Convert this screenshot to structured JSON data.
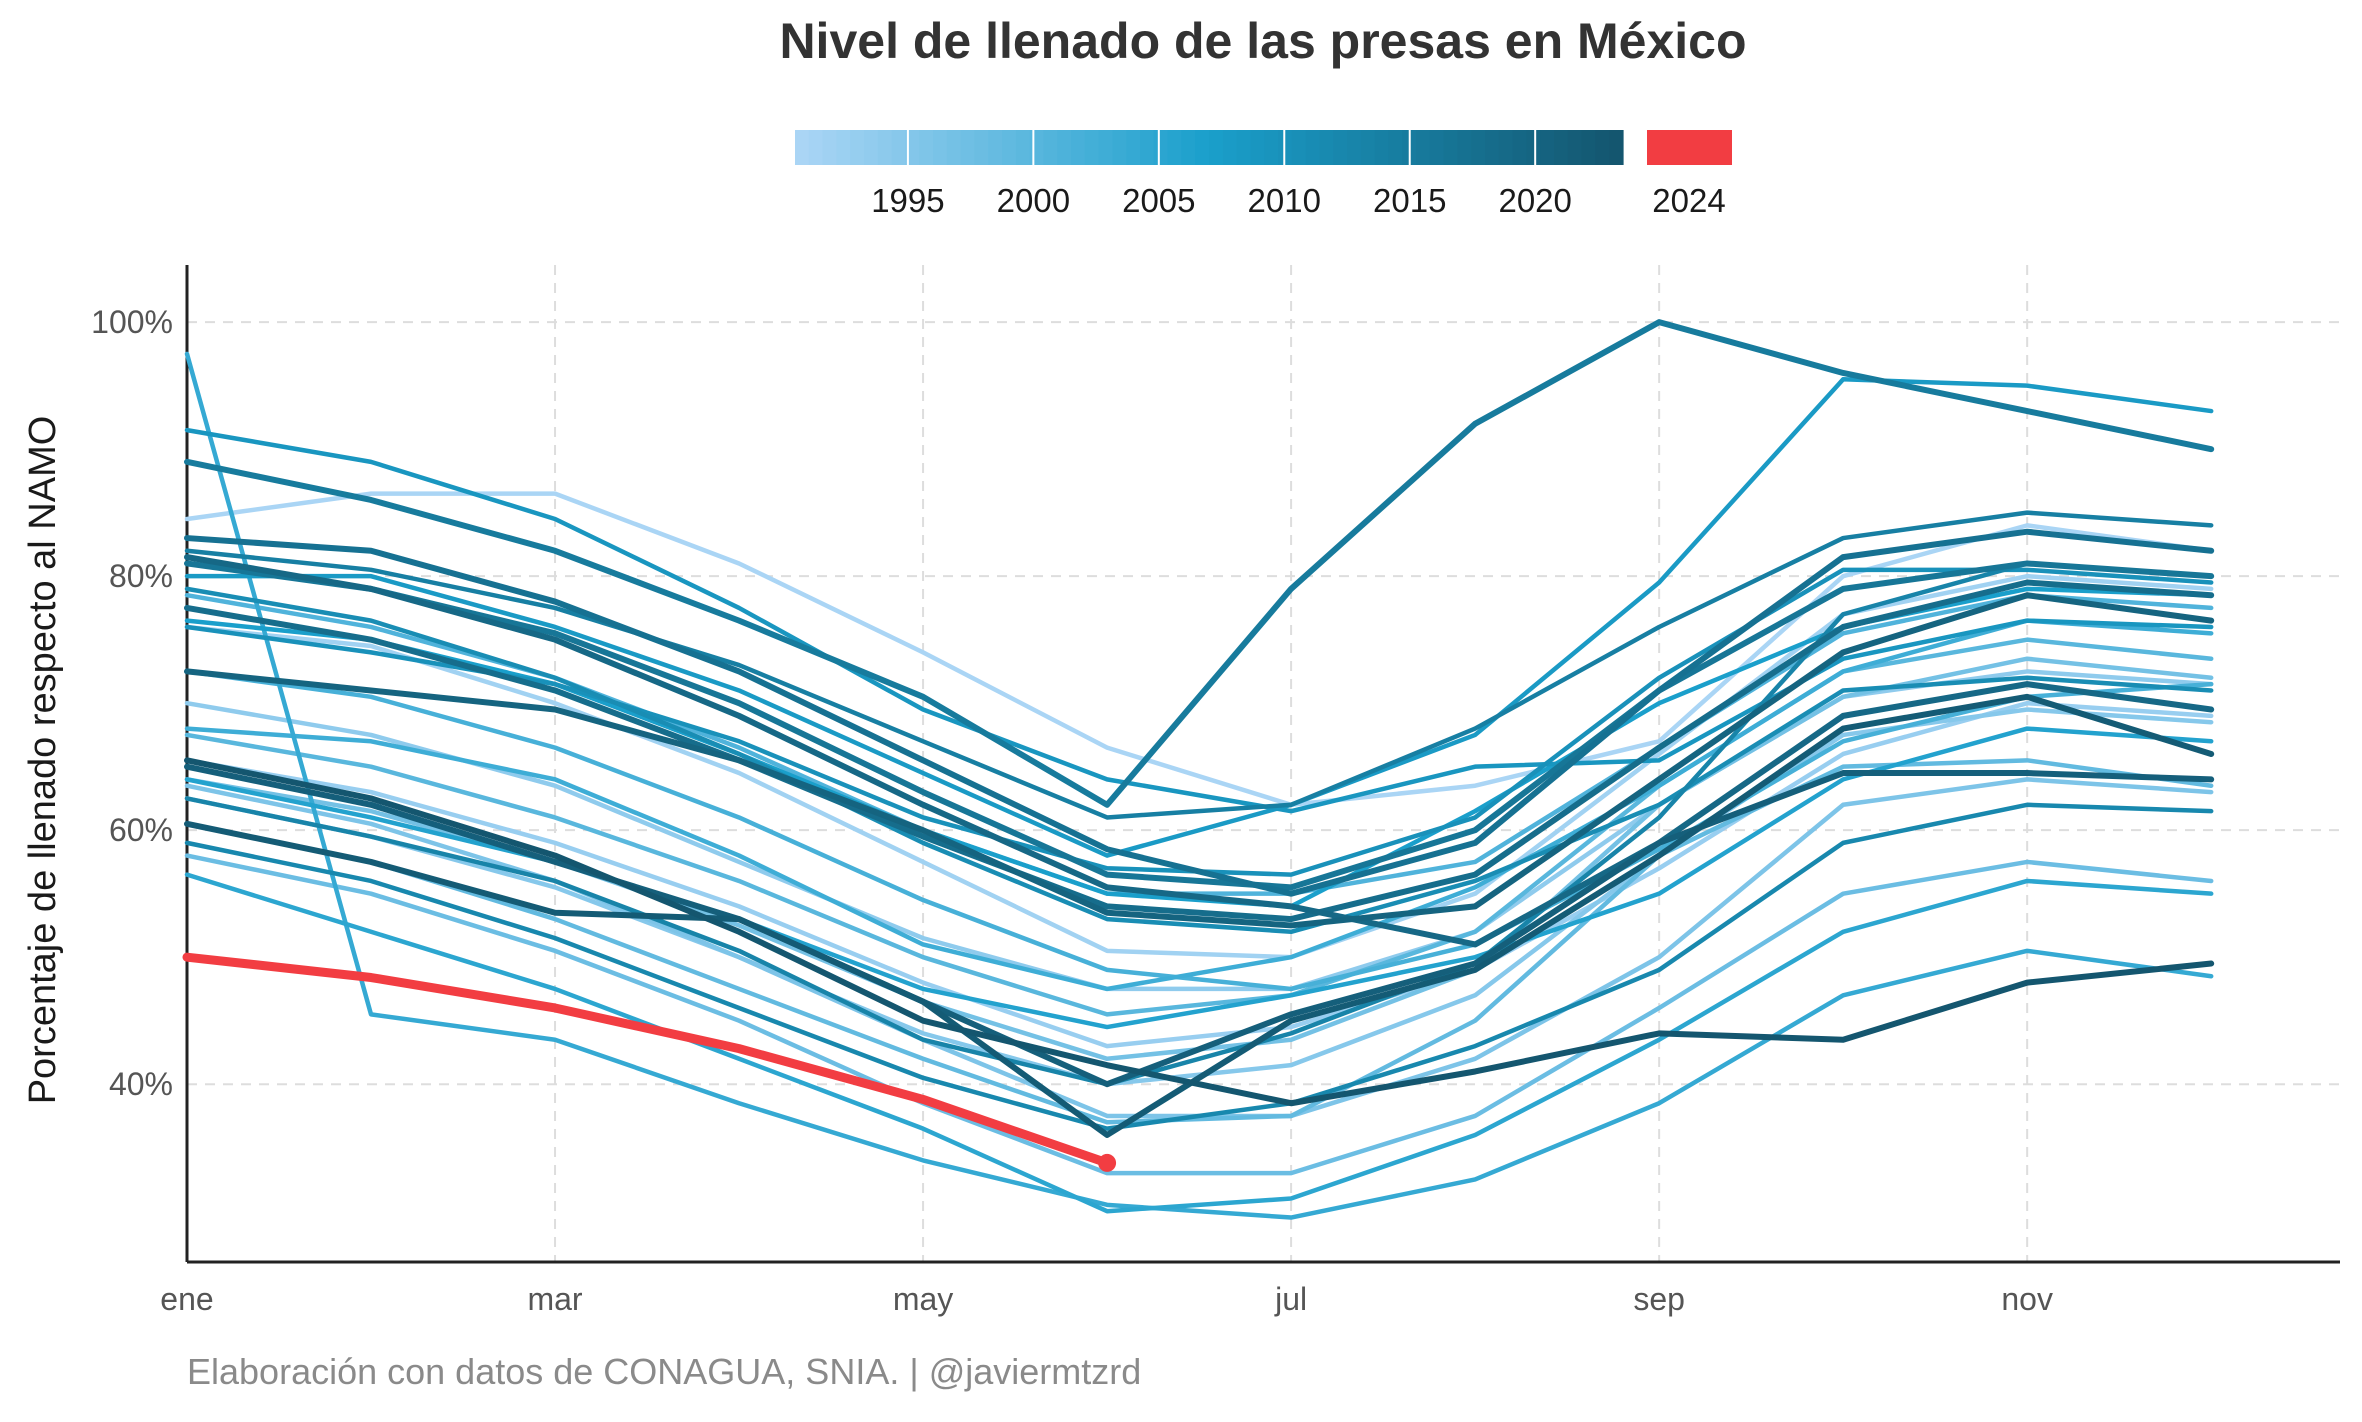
{
  "chart_data": {
    "type": "line",
    "title": "Nivel de llenado de las presas en México",
    "ylabel": "Porcentaje de llenado respecto al NAMO",
    "xlabel": "",
    "caption": "Elaboración con datos de CONAGUA, SNIA. | @javiermtzrd",
    "x_months": [
      1,
      2,
      3,
      4,
      5,
      6,
      7,
      8,
      9,
      10,
      11,
      12
    ],
    "x_ticks": [
      {
        "month": 1,
        "label": "ene"
      },
      {
        "month": 3,
        "label": "mar"
      },
      {
        "month": 5,
        "label": "may"
      },
      {
        "month": 7,
        "label": "jul"
      },
      {
        "month": 9,
        "label": "sep"
      },
      {
        "month": 11,
        "label": "nov"
      }
    ],
    "y_ticks": [
      {
        "value": 40,
        "label": "40%"
      },
      {
        "value": 60,
        "label": "60%"
      },
      {
        "value": 80,
        "label": "80%"
      },
      {
        "value": 100,
        "label": "100%"
      }
    ],
    "xlim": [
      1,
      12.7
    ],
    "ylim": [
      26,
      104.5
    ],
    "grid": true,
    "legend": {
      "placement": "top",
      "gradient_labels": [
        "1995",
        "2000",
        "2005",
        "2010",
        "2015",
        "2020"
      ],
      "highlight_label": "2024",
      "gradient_colors": [
        "#aad5f5",
        "#1a9fcb",
        "#14566f"
      ],
      "highlight_color": "#f23d42",
      "year_range": [
        1991,
        2023
      ]
    },
    "series": [
      {
        "year": 1991,
        "values": [
          84.5,
          86.5,
          86.5,
          81,
          74,
          66.5,
          62,
          63.5,
          67,
          80,
          84,
          82
        ]
      },
      {
        "year": 1992,
        "values": [
          76,
          74.5,
          70,
          64.5,
          57.5,
          50.5,
          50,
          55,
          66,
          77,
          80,
          79
        ]
      },
      {
        "year": 1993,
        "values": [
          65.5,
          63,
          59,
          54,
          48,
          43,
          44.5,
          49,
          57,
          66,
          70,
          69
        ]
      },
      {
        "year": 1994,
        "values": [
          70,
          67.5,
          63.5,
          57.5,
          51.5,
          47.5,
          47.5,
          52,
          62,
          70.5,
          72.5,
          71.5
        ]
      },
      {
        "year": 1995,
        "values": [
          62.5,
          59.5,
          55.5,
          50,
          44,
          40,
          41.5,
          47,
          58,
          67.5,
          69.5,
          68.5
        ]
      },
      {
        "year": 1996,
        "values": [
          63.5,
          60.5,
          56,
          50,
          43.5,
          37.5,
          37.5,
          42,
          50,
          62,
          64,
          63
        ]
      },
      {
        "year": 1997,
        "values": [
          64,
          61.5,
          57.5,
          52.5,
          46.5,
          42,
          43.5,
          49,
          62,
          70.5,
          73.5,
          72
        ]
      },
      {
        "year": 1998,
        "values": [
          58,
          55,
          50.5,
          45,
          38.5,
          33,
          33,
          37.5,
          46,
          55,
          57.5,
          56
        ]
      },
      {
        "year": 1999,
        "values": [
          60.5,
          57.5,
          53,
          47.5,
          42,
          37,
          37.5,
          45,
          58,
          65,
          65.5,
          63.5
        ]
      },
      {
        "year": 2000,
        "values": [
          67.5,
          65,
          61,
          56,
          50,
          45.5,
          47,
          52,
          63.5,
          72.5,
          75,
          73.5
        ]
      },
      {
        "year": 2001,
        "values": [
          78.5,
          76,
          72,
          66.5,
          60,
          55,
          55,
          57.5,
          66.5,
          75.5,
          78.5,
          77.5
        ]
      },
      {
        "year": 2002,
        "values": [
          72.5,
          70.5,
          66.5,
          61,
          54.5,
          49,
          47.5,
          51,
          58.5,
          67,
          70.5,
          71.5
        ]
      },
      {
        "year": 2003,
        "values": [
          68,
          67,
          64,
          58,
          51,
          47.5,
          50,
          55.5,
          63.5,
          72.5,
          76.5,
          75.5
        ]
      },
      {
        "year": 2004,
        "values": [
          97.5,
          45.5,
          43.5,
          38.5,
          34,
          30.5,
          29.5,
          32.5,
          38.5,
          47,
          50.5,
          48.5
        ]
      },
      {
        "year": 2005,
        "values": [
          56.5,
          52,
          47.5,
          42,
          36.5,
          30,
          31,
          36,
          43.5,
          52,
          56,
          55
        ]
      },
      {
        "year": 2006,
        "values": [
          64,
          61,
          57.5,
          53,
          47.5,
          44.5,
          47,
          50,
          55,
          64,
          68,
          67
        ]
      },
      {
        "year": 2007,
        "values": [
          76.5,
          75,
          71.5,
          66,
          60,
          55,
          54,
          61.5,
          70,
          76,
          79,
          78.5
        ]
      },
      {
        "year": 2008,
        "values": [
          80,
          80,
          76,
          71,
          64.5,
          58,
          62,
          67.5,
          79.5,
          95.5,
          95,
          93
        ]
      },
      {
        "year": 2009,
        "values": [
          91.5,
          89,
          84.5,
          77.5,
          69.5,
          64,
          61.5,
          65,
          65.5,
          73.5,
          76.5,
          76
        ]
      },
      {
        "year": 2010,
        "values": [
          76,
          74,
          71.5,
          67,
          61,
          57,
          56.5,
          61,
          72,
          80.5,
          80.5,
          79.5
        ]
      },
      {
        "year": 2011,
        "values": [
          79,
          76.5,
          72,
          66,
          59,
          53,
          52,
          56,
          62,
          71,
          72,
          71
        ]
      },
      {
        "year": 2012,
        "values": [
          59,
          56,
          51.5,
          46,
          40.5,
          36.5,
          38.5,
          43,
          49,
          59,
          62,
          61.5
        ]
      },
      {
        "year": 2013,
        "values": [
          62.5,
          59.5,
          56,
          50.5,
          43.5,
          40,
          44,
          49.5,
          61,
          77,
          81,
          80
        ]
      },
      {
        "year": 2014,
        "values": [
          82,
          80.5,
          77.5,
          73,
          67,
          61,
          62,
          68,
          76,
          83,
          85,
          84
        ]
      },
      {
        "year": 2015,
        "values": [
          89,
          86,
          82,
          76.5,
          70.5,
          62,
          79,
          92,
          100,
          96,
          93,
          90
        ]
      },
      {
        "year": 2016,
        "values": [
          81,
          79,
          75.5,
          70,
          63,
          56.5,
          55.5,
          60,
          71,
          79,
          81,
          80
        ]
      },
      {
        "year": 2017,
        "values": [
          83,
          82,
          78,
          72.5,
          65.5,
          58.5,
          55,
          59,
          71,
          81.5,
          83.5,
          82
        ]
      },
      {
        "year": 2018,
        "values": [
          77.5,
          75,
          71,
          65.5,
          59.5,
          54,
          53,
          56.5,
          66.5,
          76,
          79.5,
          78.5
        ]
      },
      {
        "year": 2019,
        "values": [
          81.5,
          79,
          75,
          69,
          62,
          55.5,
          54,
          51,
          59,
          69,
          71.5,
          69.5
        ]
      },
      {
        "year": 2020,
        "values": [
          72.5,
          71,
          69.5,
          65.5,
          60,
          53.5,
          52.5,
          54,
          64,
          74,
          78.5,
          76.5
        ]
      },
      {
        "year": 2021,
        "values": [
          65,
          62,
          57.5,
          53,
          46.5,
          40,
          45.5,
          49.5,
          59,
          64.5,
          64.5,
          64
        ]
      },
      {
        "year": 2022,
        "values": [
          60.5,
          57.5,
          53.5,
          53,
          46.5,
          36,
          45,
          49,
          58,
          68,
          70.5,
          66
        ]
      },
      {
        "year": 2023,
        "values": [
          65.5,
          62.5,
          58,
          52,
          45,
          41.5,
          38.5,
          41,
          44,
          43.5,
          48,
          49.5
        ]
      },
      {
        "year": 2024,
        "values": [
          50,
          48.4,
          46,
          42.8,
          38.8,
          33.8
        ],
        "highlight": true
      }
    ]
  }
}
